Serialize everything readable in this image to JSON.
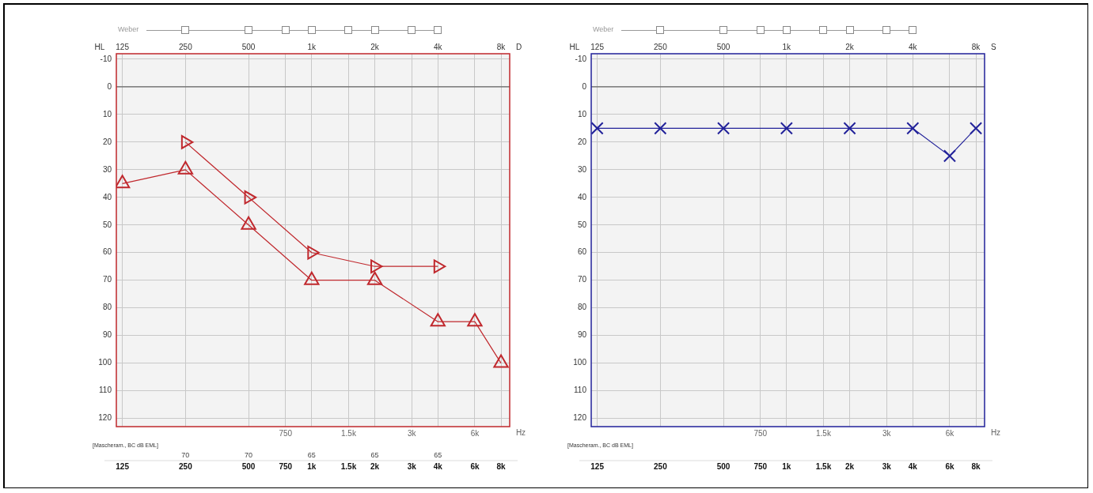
{
  "chart_data": [
    {
      "type": "line",
      "xlabel": "Hz",
      "ylabel": "HL",
      "log": "x",
      "grid": true,
      "legend": false,
      "line_style": "solid",
      "x": [
        125,
        250,
        500,
        1000,
        2000,
        4000,
        6000,
        8000
      ],
      "series": [
        {
          "color": "#c0282d",
          "marker": "triangle",
          "values": [
            35,
            30,
            50,
            70,
            70,
            85,
            85,
            100
          ]
        },
        {
          "color": "#c0282d",
          "marker": "triangle-right",
          "x": [
            250,
            500,
            1000,
            2000,
            4000
          ],
          "values": [
            20,
            40,
            60,
            65,
            65
          ]
        }
      ],
      "xlim": [
        117,
        8800
      ],
      "ylim": [
        123,
        -12
      ],
      "xticks": [
        125,
        250,
        500,
        750,
        {
          "value": 1000,
          "label": "1k"
        },
        {
          "value": 1500,
          "label": "1.5k"
        },
        {
          "value": 2000,
          "label": "2k"
        },
        {
          "value": 3000,
          "label": "3k"
        },
        {
          "value": 4000,
          "label": "4k"
        },
        {
          "value": 6000,
          "label": "6k"
        },
        {
          "value": 8000,
          "label": "8k"
        }
      ],
      "yticks": [
        -10,
        0,
        10,
        20,
        30,
        40,
        50,
        60,
        70,
        80,
        90,
        100,
        110,
        120
      ],
      "ref_lines": [
        {
          "axis": "y",
          "value": 0,
          "color": "#666666"
        }
      ],
      "annotations": [
        "Weber",
        "[Mascheram., BC dB EML]",
        "D",
        "125",
        "250",
        "500",
        "1k",
        "2k",
        "4k",
        "8k",
        "750",
        "1.5k",
        "3k",
        "6k",
        "70",
        "70",
        "65",
        "65",
        "65"
      ]
    },
    {
      "type": "line",
      "xlabel": "Hz",
      "ylabel": "HL",
      "log": "x",
      "grid": true,
      "legend": false,
      "line_style": "solid",
      "x": [
        125,
        250,
        500,
        1000,
        2000,
        4000,
        6000,
        8000
      ],
      "series": [
        {
          "color": "#22229a",
          "marker": "cross",
          "values": [
            15,
            15,
            15,
            15,
            15,
            15,
            25,
            15
          ]
        }
      ],
      "xlim": [
        117,
        8800
      ],
      "ylim": [
        123,
        -12
      ],
      "xticks": [
        125,
        250,
        500,
        750,
        {
          "value": 1000,
          "label": "1k"
        },
        {
          "value": 1500,
          "label": "1.5k"
        },
        {
          "value": 2000,
          "label": "2k"
        },
        {
          "value": 3000,
          "label": "3k"
        },
        {
          "value": 4000,
          "label": "4k"
        },
        {
          "value": 6000,
          "label": "6k"
        },
        {
          "value": 8000,
          "label": "8k"
        }
      ],
      "yticks": [
        -10,
        0,
        10,
        20,
        30,
        40,
        50,
        60,
        70,
        80,
        90,
        100,
        110,
        120
      ],
      "ref_lines": [
        {
          "axis": "y",
          "value": 0,
          "color": "#666666"
        }
      ],
      "annotations": [
        "Weber",
        "[Mascheram., BC dB EML]",
        "S",
        "125",
        "250",
        "500",
        "1k",
        "2k",
        "4k",
        "8k",
        "750",
        "1.5k",
        "3k",
        "6k"
      ]
    }
  ]
}
